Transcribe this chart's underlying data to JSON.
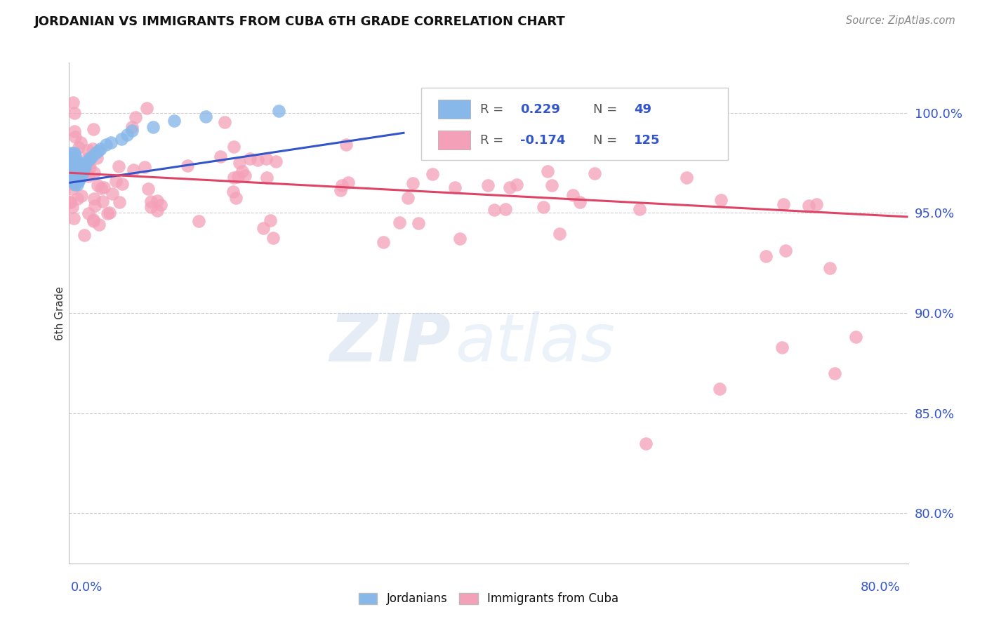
{
  "title": "JORDANIAN VS IMMIGRANTS FROM CUBA 6TH GRADE CORRELATION CHART",
  "source": "Source: ZipAtlas.com",
  "ylabel": "6th Grade",
  "y_tick_values": [
    1.0,
    0.95,
    0.9,
    0.85,
    0.8
  ],
  "y_tick_labels": [
    "100.0%",
    "95.0%",
    "90.0%",
    "85.0%",
    "80.0%"
  ],
  "x_range": [
    0.0,
    0.8
  ],
  "y_range": [
    0.775,
    1.025
  ],
  "blue_color": "#88B8EA",
  "pink_color": "#F4A0B8",
  "blue_line_color": "#3355CC",
  "pink_line_color": "#DD4466",
  "label_color": "#3355CC",
  "grid_color": "#CCCCCC",
  "title_color": "#111111",
  "source_color": "#888888",
  "blue_N": 49,
  "pink_N": 125,
  "blue_R_text": "0.229",
  "pink_R_text": "-0.174",
  "blue_N_text": "49",
  "pink_N_text": "125",
  "blue_trend_x": [
    0.0,
    0.32
  ],
  "blue_trend_y": [
    0.965,
    0.99
  ],
  "pink_trend_x": [
    0.0,
    0.8
  ],
  "pink_trend_y": [
    0.97,
    0.948
  ]
}
